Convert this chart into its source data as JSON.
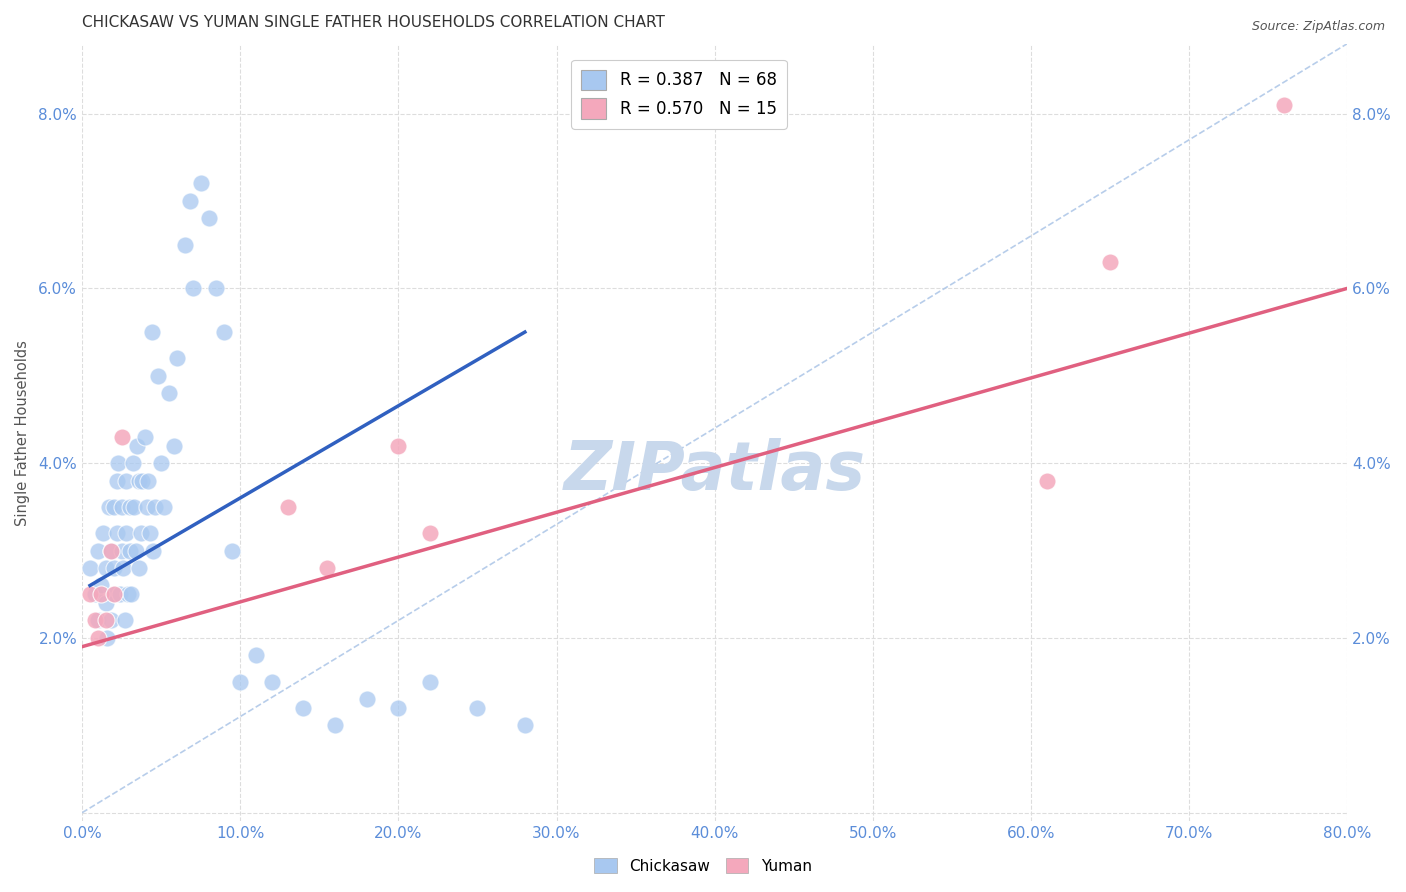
{
  "title": "CHICKASAW VS YUMAN SINGLE FATHER HOUSEHOLDS CORRELATION CHART",
  "source": "Source: ZipAtlas.com",
  "ylabel": "Single Father Households",
  "xlim": [
    0.0,
    0.8
  ],
  "ylim": [
    -0.001,
    0.088
  ],
  "chickasaw_R": 0.387,
  "chickasaw_N": 68,
  "yuman_R": 0.57,
  "yuman_N": 15,
  "chickasaw_color": "#A8C8F0",
  "yuman_color": "#F4A8BC",
  "chickasaw_line_color": "#3060C0",
  "yuman_line_color": "#E06080",
  "diagonal_color": "#B0C8E8",
  "watermark_color": "#C8D8EC",
  "background_color": "#FFFFFF",
  "grid_color": "#DDDDDD",
  "title_fontsize": 11,
  "source_fontsize": 9,
  "tick_label_color": "#5B8DD9",
  "chickasaw_x": [
    0.005,
    0.008,
    0.01,
    0.01,
    0.012,
    0.013,
    0.015,
    0.015,
    0.016,
    0.017,
    0.018,
    0.018,
    0.02,
    0.02,
    0.021,
    0.022,
    0.022,
    0.023,
    0.024,
    0.025,
    0.025,
    0.026,
    0.027,
    0.028,
    0.028,
    0.029,
    0.03,
    0.03,
    0.031,
    0.032,
    0.033,
    0.034,
    0.035,
    0.036,
    0.036,
    0.037,
    0.038,
    0.04,
    0.041,
    0.042,
    0.043,
    0.044,
    0.045,
    0.046,
    0.048,
    0.05,
    0.052,
    0.055,
    0.058,
    0.06,
    0.065,
    0.068,
    0.07,
    0.075,
    0.08,
    0.085,
    0.09,
    0.095,
    0.1,
    0.11,
    0.12,
    0.14,
    0.16,
    0.18,
    0.2,
    0.22,
    0.25,
    0.28
  ],
  "chickasaw_y": [
    0.028,
    0.025,
    0.03,
    0.022,
    0.026,
    0.032,
    0.024,
    0.028,
    0.02,
    0.035,
    0.03,
    0.022,
    0.035,
    0.028,
    0.025,
    0.032,
    0.038,
    0.04,
    0.025,
    0.03,
    0.035,
    0.028,
    0.022,
    0.032,
    0.038,
    0.025,
    0.035,
    0.03,
    0.025,
    0.04,
    0.035,
    0.03,
    0.042,
    0.038,
    0.028,
    0.032,
    0.038,
    0.043,
    0.035,
    0.038,
    0.032,
    0.055,
    0.03,
    0.035,
    0.05,
    0.04,
    0.035,
    0.048,
    0.042,
    0.052,
    0.065,
    0.07,
    0.06,
    0.072,
    0.068,
    0.06,
    0.055,
    0.03,
    0.015,
    0.018,
    0.015,
    0.012,
    0.01,
    0.013,
    0.012,
    0.015,
    0.012,
    0.01
  ],
  "yuman_x": [
    0.005,
    0.008,
    0.01,
    0.012,
    0.015,
    0.018,
    0.02,
    0.025,
    0.13,
    0.155,
    0.2,
    0.22,
    0.61,
    0.65,
    0.76
  ],
  "yuman_y": [
    0.025,
    0.022,
    0.02,
    0.025,
    0.022,
    0.03,
    0.025,
    0.043,
    0.035,
    0.028,
    0.042,
    0.032,
    0.038,
    0.063,
    0.081
  ],
  "chickasaw_trend_x": [
    0.005,
    0.28
  ],
  "chickasaw_trend_y": [
    0.026,
    0.055
  ],
  "yuman_trend_x": [
    0.0,
    0.8
  ],
  "yuman_trend_y": [
    0.019,
    0.06
  ]
}
